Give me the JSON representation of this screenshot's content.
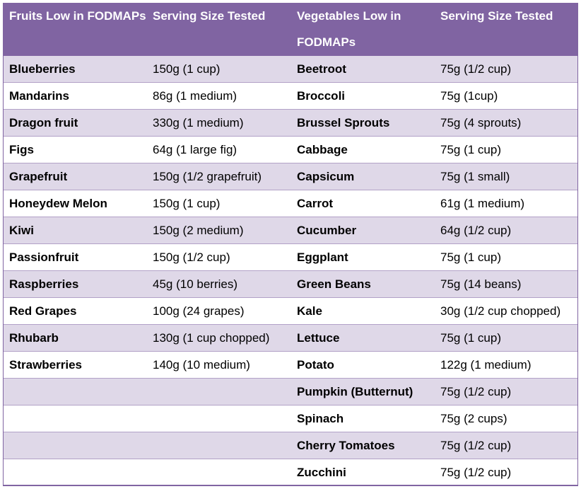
{
  "table": {
    "headers": [
      "Fruits Low in FODMAPs",
      "Serving Size Tested",
      "Vegetables Low in FODMAPs",
      "Serving Size Tested"
    ],
    "rows": [
      [
        "Blueberries",
        "150g (1 cup)",
        "Beetroot",
        "75g (1/2 cup)"
      ],
      [
        "Mandarins",
        "86g (1 medium)",
        "Broccoli",
        "75g (1cup)"
      ],
      [
        "Dragon fruit",
        "330g (1 medium)",
        "Brussel Sprouts",
        "75g (4 sprouts)"
      ],
      [
        "Figs",
        "64g (1 large fig)",
        "Cabbage",
        "75g (1 cup)"
      ],
      [
        "Grapefruit",
        "150g (1/2 grapefruit)",
        "Capsicum",
        "75g (1 small)"
      ],
      [
        "Honeydew Melon",
        "150g (1 cup)",
        "Carrot",
        "61g (1 medium)"
      ],
      [
        "Kiwi",
        "150g (2 medium)",
        "Cucumber",
        "64g (1/2 cup)"
      ],
      [
        "Passionfruit",
        "150g (1/2 cup)",
        "Eggplant",
        "75g (1 cup)"
      ],
      [
        "Raspberries",
        "45g (10 berries)",
        "Green Beans",
        "75g (14 beans)"
      ],
      [
        "Red Grapes",
        "100g (24 grapes)",
        "Kale",
        "30g (1/2 cup chopped)"
      ],
      [
        "Rhubarb",
        "130g (1 cup chopped)",
        "Lettuce",
        "75g (1 cup)"
      ],
      [
        "Strawberries",
        "140g (10 medium)",
        "Potato",
        "122g (1 medium)"
      ],
      [
        "",
        "",
        "Pumpkin (Butternut)",
        "75g (1/2 cup)"
      ],
      [
        "",
        "",
        "Spinach",
        "75g (2 cups)"
      ],
      [
        "",
        "",
        "Cherry Tomatoes",
        "75g (1/2 cup)"
      ],
      [
        "",
        "",
        "Zucchini",
        "75g (1/2 cup)"
      ]
    ]
  },
  "colors": {
    "header_background": "#8064a2",
    "header_text": "#ffffff",
    "banded_row": "#dfd8e8",
    "plain_row": "#ffffff",
    "row_border": "#b2a1c7"
  }
}
